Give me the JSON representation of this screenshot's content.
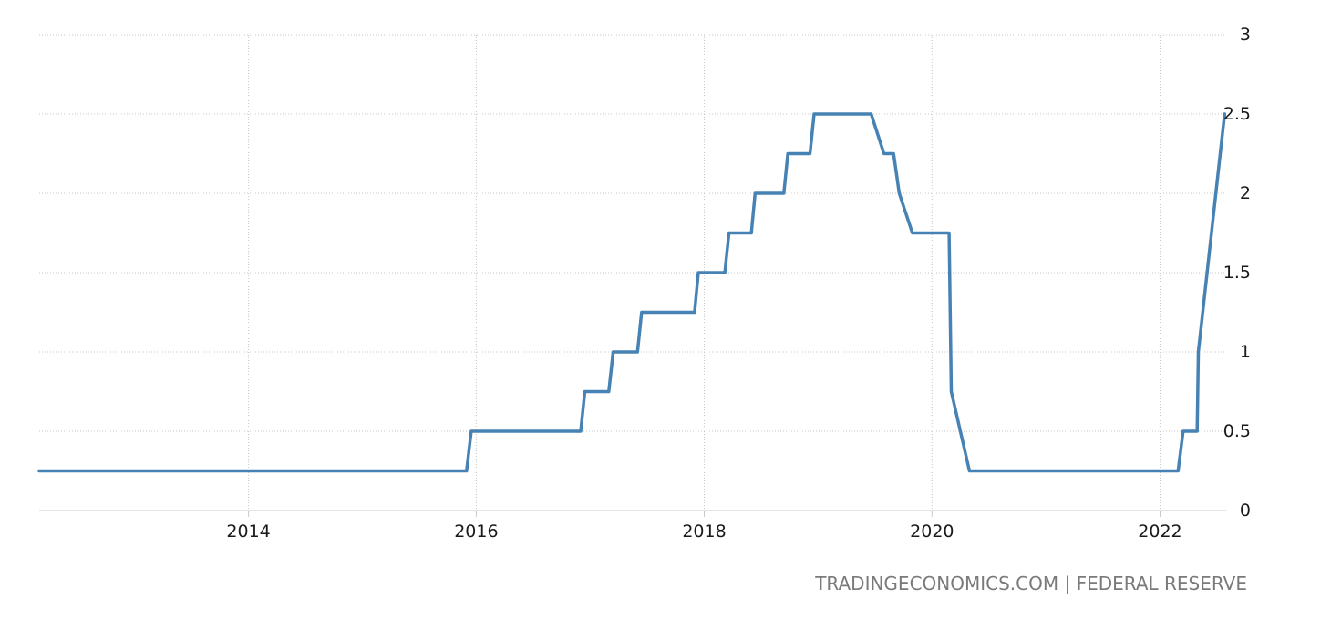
{
  "chart_data": {
    "type": "line",
    "series": [
      {
        "color": "#4682b4",
        "points": [
          [
            "2012-03-01",
            0.25
          ],
          [
            "2015-12-01",
            0.25
          ],
          [
            "2015-12-16",
            0.5
          ],
          [
            "2016-12-01",
            0.5
          ],
          [
            "2016-12-14",
            0.75
          ],
          [
            "2017-03-01",
            0.75
          ],
          [
            "2017-03-15",
            1.0
          ],
          [
            "2017-06-01",
            1.0
          ],
          [
            "2017-06-14",
            1.25
          ],
          [
            "2017-12-01",
            1.25
          ],
          [
            "2017-12-13",
            1.5
          ],
          [
            "2018-03-08",
            1.5
          ],
          [
            "2018-03-21",
            1.75
          ],
          [
            "2018-06-01",
            1.75
          ],
          [
            "2018-06-13",
            2.0
          ],
          [
            "2018-09-13",
            2.0
          ],
          [
            "2018-09-26",
            2.25
          ],
          [
            "2018-12-06",
            2.25
          ],
          [
            "2018-12-19",
            2.5
          ],
          [
            "2019-06-20",
            2.5
          ],
          [
            "2019-07-31",
            2.25
          ],
          [
            "2019-08-31",
            2.25
          ],
          [
            "2019-09-18",
            2.0
          ],
          [
            "2019-10-30",
            1.75
          ],
          [
            "2020-02-25",
            1.75
          ],
          [
            "2020-03-03",
            0.75
          ],
          [
            "2020-04-30",
            0.25
          ],
          [
            "2022-02-28",
            0.25
          ],
          [
            "2022-03-16",
            0.5
          ],
          [
            "2022-04-30",
            0.5
          ],
          [
            "2022-05-04",
            1.0
          ],
          [
            "2022-07-27",
            2.5
          ]
        ]
      }
    ],
    "x_ticks": [
      {
        "date": "2014-01-01",
        "label": "2014"
      },
      {
        "date": "2016-01-01",
        "label": "2016"
      },
      {
        "date": "2018-01-01",
        "label": "2018"
      },
      {
        "date": "2020-01-01",
        "label": "2020"
      },
      {
        "date": "2022-01-01",
        "label": "2022"
      }
    ],
    "y_ticks": [
      {
        "value": 0,
        "label": "0"
      },
      {
        "value": 0.5,
        "label": "0.5"
      },
      {
        "value": 1,
        "label": "1"
      },
      {
        "value": 1.5,
        "label": "1.5"
      },
      {
        "value": 2,
        "label": "2"
      },
      {
        "value": 2.5,
        "label": "2.5"
      },
      {
        "value": 3,
        "label": "3"
      }
    ],
    "xlim": [
      "2012-03-01",
      "2022-08-01"
    ],
    "ylim": [
      0,
      3
    ],
    "y_axis_side": "right",
    "grid": true,
    "legend": false
  },
  "source_text": "TRADINGECONOMICS.COM | FEDERAL RESERVE"
}
